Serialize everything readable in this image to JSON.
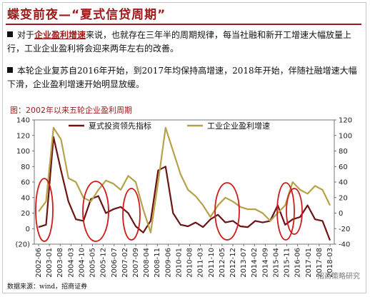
{
  "header": {
    "title": "蝶变前夜—“夏式信贷周期”"
  },
  "bullets": [
    {
      "pre": "对于",
      "em": "企业盈利增速",
      "post": "来说，也就存在三年半的周期规律，每当社融和新开工增速大幅放量上行，工业企业盈利将会迎来两年左右的改善。"
    },
    {
      "pre": "本轮企业复苏自2016年开始，到2017年均保持高增速，2018年开始，伴随社融增速大幅下滑，企业盈利增速开始明显放缓。",
      "em": "",
      "post": ""
    }
  ],
  "figure": {
    "label": "图：2002年以来五轮企业盈利周期"
  },
  "footer": {
    "source": "数据来源：wind，招商证券",
    "watermark": "招商策略研究"
  },
  "colors": {
    "accent": "#9c1a1a",
    "series_lead": "#6b1414",
    "series_profit": "#b5a24a",
    "ellipse": "#d11a1a"
  },
  "chart_data": {
    "type": "line",
    "title": "",
    "x_tick_labels": [
      "2002-06",
      "2003-01",
      "2003-08",
      "2004-03",
      "2004-10",
      "2005-05",
      "2005-12",
      "2006-07",
      "2007-02",
      "2007-09",
      "2008-04",
      "2008-11",
      "2009-06",
      "2010-01",
      "2010-08",
      "2011-03",
      "2011-10",
      "2012-05",
      "2012-12",
      "2013-07",
      "2014-02",
      "2014-09",
      "2015-04",
      "2015-11",
      "2016-06",
      "2017-01",
      "2017-08",
      "2018-03"
    ],
    "ylim_left": [
      -20,
      140
    ],
    "yticks_left": [
      140,
      120,
      100,
      80,
      60,
      40,
      20,
      0,
      -20
    ],
    "ytick_labels_left": [
      "140",
      "120",
      "100",
      "80",
      "60",
      "40",
      "20",
      "0",
      "(20)"
    ],
    "ylim_right": [
      -40,
      120
    ],
    "yticks_right": [
      120,
      100,
      80,
      60,
      40,
      20,
      0,
      -20,
      -40
    ],
    "ytick_labels_right": [
      "120",
      "100",
      "80",
      "60",
      "40",
      "20",
      "0",
      "-20",
      "-40"
    ],
    "legend_position": "top",
    "series": [
      {
        "name": "夏式投资领先指标",
        "axis": "left",
        "color": "#6b1414",
        "values": [
          2,
          5,
          118,
          75,
          35,
          12,
          10,
          38,
          42,
          20,
          25,
          28,
          20,
          3,
          -5,
          10,
          75,
          80,
          20,
          5,
          3,
          8,
          2,
          12,
          18,
          8,
          10,
          3,
          2,
          10,
          8,
          10,
          30,
          5,
          12,
          15,
          30,
          12,
          10,
          -15
        ]
      },
      {
        "name": "工业企业盈利增速",
        "axis": "right",
        "color": "#b5a24a",
        "values": [
          2,
          15,
          110,
          95,
          45,
          40,
          20,
          15,
          30,
          42,
          38,
          30,
          48,
          40,
          5,
          -25,
          40,
          110,
          80,
          50,
          30,
          22,
          10,
          -5,
          10,
          20,
          15,
          8,
          5,
          5,
          0,
          -10,
          0,
          10,
          40,
          30,
          25,
          35,
          30,
          10
        ]
      }
    ],
    "highlight_ellipses": 6
  }
}
